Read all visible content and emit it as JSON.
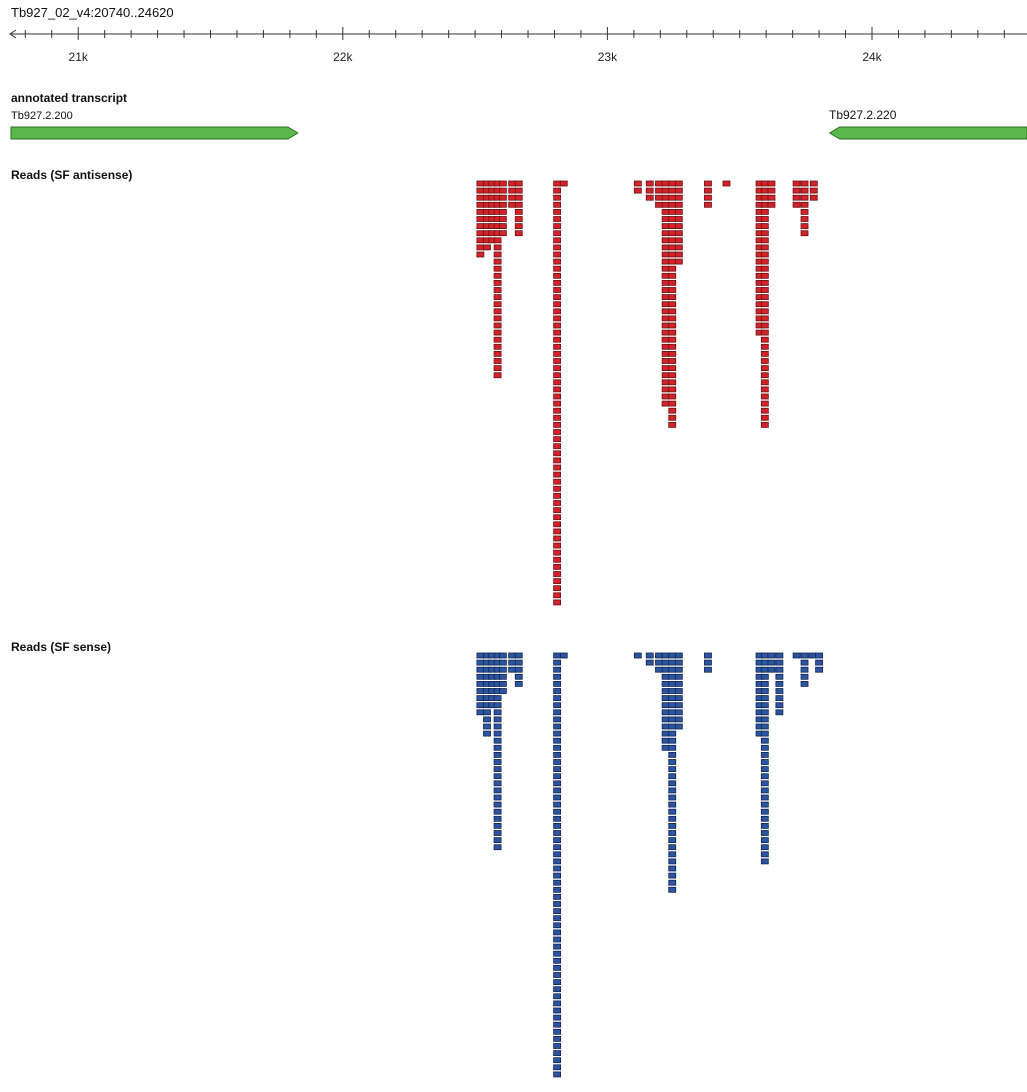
{
  "region": {
    "label": "Tb927_02_v4:20740..24620"
  },
  "ruler": {
    "start": 20740,
    "end": 24620,
    "major_ticks": [
      {
        "pos": 21000,
        "label": "21k"
      },
      {
        "pos": 22000,
        "label": "22k"
      },
      {
        "pos": 23000,
        "label": "23k"
      },
      {
        "pos": 24000,
        "label": "24k"
      }
    ],
    "minor_step": 100
  },
  "annotated_transcript": {
    "title": "annotated transcript",
    "genes": [
      {
        "name": "Tb927.2.200",
        "start": 20740,
        "end": 21830,
        "strand": "+"
      },
      {
        "name": "Tb927.2.220",
        "start": 23840,
        "end": 24620,
        "strand": "-"
      }
    ]
  },
  "tracks": {
    "antisense": {
      "title": "Reads (SF antisense)",
      "color": "#d2232a",
      "stroke": "#6b1010",
      "stacks": [
        {
          "pos": 22520,
          "depth": 11
        },
        {
          "pos": 22545,
          "depth": 10
        },
        {
          "pos": 22565,
          "depth": 9
        },
        {
          "pos": 22585,
          "depth": 28
        },
        {
          "pos": 22605,
          "depth": 8
        },
        {
          "pos": 22640,
          "depth": 4
        },
        {
          "pos": 22665,
          "depth": 8
        },
        {
          "pos": 22810,
          "depth": 60
        },
        {
          "pos": 22835,
          "depth": 1
        },
        {
          "pos": 23115,
          "depth": 2
        },
        {
          "pos": 23160,
          "depth": 3
        },
        {
          "pos": 23195,
          "depth": 4
        },
        {
          "pos": 23220,
          "depth": 32
        },
        {
          "pos": 23245,
          "depth": 35
        },
        {
          "pos": 23270,
          "depth": 12
        },
        {
          "pos": 23380,
          "depth": 4
        },
        {
          "pos": 23450,
          "depth": 1
        },
        {
          "pos": 23575,
          "depth": 22
        },
        {
          "pos": 23595,
          "depth": 35
        },
        {
          "pos": 23620,
          "depth": 4
        },
        {
          "pos": 23715,
          "depth": 4
        },
        {
          "pos": 23745,
          "depth": 8
        },
        {
          "pos": 23780,
          "depth": 3
        }
      ]
    },
    "sense": {
      "title": "Reads (SF sense)",
      "color": "#2c55a0",
      "stroke": "#0f2350",
      "stacks": [
        {
          "pos": 22520,
          "depth": 9
        },
        {
          "pos": 22545,
          "depth": 12
        },
        {
          "pos": 22565,
          "depth": 8
        },
        {
          "pos": 22585,
          "depth": 28
        },
        {
          "pos": 22605,
          "depth": 6
        },
        {
          "pos": 22640,
          "depth": 3
        },
        {
          "pos": 22665,
          "depth": 5
        },
        {
          "pos": 22810,
          "depth": 60
        },
        {
          "pos": 22835,
          "depth": 1
        },
        {
          "pos": 23115,
          "depth": 1
        },
        {
          "pos": 23160,
          "depth": 2
        },
        {
          "pos": 23195,
          "depth": 3
        },
        {
          "pos": 23220,
          "depth": 14
        },
        {
          "pos": 23245,
          "depth": 34
        },
        {
          "pos": 23270,
          "depth": 11
        },
        {
          "pos": 23380,
          "depth": 3
        },
        {
          "pos": 23575,
          "depth": 12
        },
        {
          "pos": 23595,
          "depth": 30
        },
        {
          "pos": 23620,
          "depth": 3
        },
        {
          "pos": 23650,
          "depth": 9
        },
        {
          "pos": 23715,
          "depth": 1
        },
        {
          "pos": 23745,
          "depth": 5
        },
        {
          "pos": 23775,
          "depth": 1
        },
        {
          "pos": 23800,
          "depth": 3
        }
      ]
    }
  }
}
